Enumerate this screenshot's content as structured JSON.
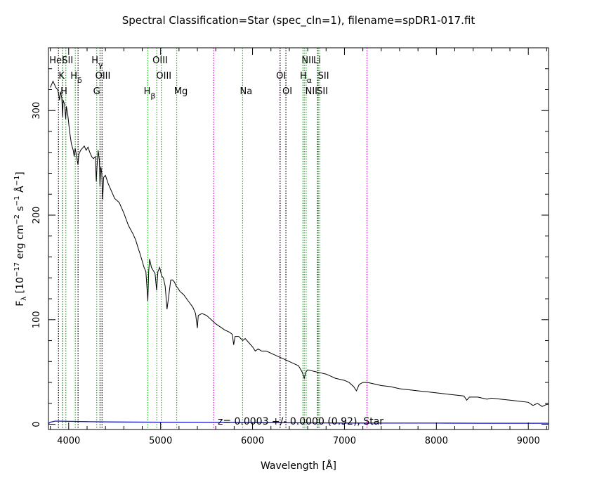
{
  "chart_data": {
    "type": "line",
    "title": "Spectral Classification=Star (spec_cln=1), filename=spDR1-017.fit",
    "xlabel": "Wavelength [Å]",
    "ylabel_main": "F",
    "ylabel_sub": "λ",
    "ylabel_bracket_open": " [10",
    "ylabel_exp1": "−17",
    "ylabel_mid1": " erg cm",
    "ylabel_exp2": "−2",
    "ylabel_mid2": " s",
    "ylabel_exp3": "−1",
    "ylabel_mid3": " Å",
    "ylabel_exp4": "−1",
    "ylabel_bracket_close": "]",
    "xlim": [
      3780,
      9220
    ],
    "ylim": [
      -5,
      360
    ],
    "x_ticks": [
      4000,
      5000,
      6000,
      7000,
      8000,
      9000
    ],
    "x_tick_labels": [
      "4000",
      "5000",
      "6000",
      "7000",
      "8000",
      "9000"
    ],
    "y_ticks": [
      0,
      100,
      200,
      300
    ],
    "y_tick_labels": [
      "0",
      "100",
      "200",
      "300"
    ],
    "annotation": "z= 0.0003 +/- 0.0000 (0.92), Star",
    "colors": {
      "spectrum": "#000000",
      "error": "#1010c8",
      "black_line": "#000000",
      "green_line": "#00c000",
      "magenta_line": "#d000d0"
    },
    "spectrum": [
      [
        3800,
        322
      ],
      [
        3830,
        328
      ],
      [
        3860,
        322
      ],
      [
        3880,
        320
      ],
      [
        3890,
        316
      ],
      [
        3900,
        310
      ],
      [
        3910,
        318
      ],
      [
        3925,
        312
      ],
      [
        3934,
        294
      ],
      [
        3940,
        310
      ],
      [
        3955,
        306
      ],
      [
        3968,
        292
      ],
      [
        3975,
        304
      ],
      [
        3990,
        296
      ],
      [
        4010,
        280
      ],
      [
        4030,
        268
      ],
      [
        4050,
        262
      ],
      [
        4060,
        256
      ],
      [
        4070,
        264
      ],
      [
        4090,
        254
      ],
      [
        4101,
        248
      ],
      [
        4110,
        258
      ],
      [
        4130,
        262
      ],
      [
        4150,
        264
      ],
      [
        4170,
        266
      ],
      [
        4190,
        262
      ],
      [
        4210,
        265
      ],
      [
        4230,
        260
      ],
      [
        4250,
        256
      ],
      [
        4270,
        254
      ],
      [
        4290,
        256
      ],
      [
        4300,
        232
      ],
      [
        4308,
        246
      ],
      [
        4320,
        262
      ],
      [
        4335,
        252
      ],
      [
        4340,
        228
      ],
      [
        4350,
        246
      ],
      [
        4360,
        240
      ],
      [
        4370,
        215
      ],
      [
        4380,
        236
      ],
      [
        4400,
        238
      ],
      [
        4430,
        230
      ],
      [
        4460,
        224
      ],
      [
        4500,
        216
      ],
      [
        4550,
        212
      ],
      [
        4600,
        202
      ],
      [
        4650,
        190
      ],
      [
        4700,
        182
      ],
      [
        4730,
        176
      ],
      [
        4750,
        170
      ],
      [
        4780,
        162
      ],
      [
        4800,
        156
      ],
      [
        4820,
        150
      ],
      [
        4840,
        146
      ],
      [
        4861,
        118
      ],
      [
        4870,
        146
      ],
      [
        4880,
        158
      ],
      [
        4900,
        150
      ],
      [
        4920,
        147
      ],
      [
        4940,
        144
      ],
      [
        4957,
        128
      ],
      [
        4970,
        146
      ],
      [
        4990,
        150
      ],
      [
        5010,
        142
      ],
      [
        5030,
        140
      ],
      [
        5050,
        132
      ],
      [
        5070,
        110
      ],
      [
        5090,
        124
      ],
      [
        5110,
        138
      ],
      [
        5130,
        138
      ],
      [
        5150,
        136
      ],
      [
        5170,
        132
      ],
      [
        5190,
        130
      ],
      [
        5210,
        127
      ],
      [
        5250,
        124
      ],
      [
        5300,
        118
      ],
      [
        5350,
        112
      ],
      [
        5380,
        106
      ],
      [
        5400,
        92
      ],
      [
        5410,
        104
      ],
      [
        5450,
        106
      ],
      [
        5500,
        104
      ],
      [
        5550,
        100
      ],
      [
        5600,
        96
      ],
      [
        5650,
        93
      ],
      [
        5700,
        90
      ],
      [
        5750,
        88
      ],
      [
        5780,
        86
      ],
      [
        5795,
        76
      ],
      [
        5810,
        84
      ],
      [
        5850,
        84
      ],
      [
        5893,
        80
      ],
      [
        5920,
        82
      ],
      [
        5960,
        78
      ],
      [
        6000,
        74
      ],
      [
        6030,
        70
      ],
      [
        6060,
        72
      ],
      [
        6100,
        70
      ],
      [
        6150,
        70
      ],
      [
        6200,
        68
      ],
      [
        6250,
        66
      ],
      [
        6300,
        64
      ],
      [
        6350,
        62
      ],
      [
        6400,
        60
      ],
      [
        6450,
        58
      ],
      [
        6500,
        56
      ],
      [
        6540,
        50
      ],
      [
        6563,
        44
      ],
      [
        6580,
        50
      ],
      [
        6600,
        52
      ],
      [
        6650,
        51
      ],
      [
        6700,
        50
      ],
      [
        6750,
        49
      ],
      [
        6800,
        48
      ],
      [
        6850,
        46
      ],
      [
        6900,
        44
      ],
      [
        6950,
        43
      ],
      [
        7000,
        42
      ],
      [
        7050,
        40
      ],
      [
        7100,
        36
      ],
      [
        7130,
        32
      ],
      [
        7160,
        38
      ],
      [
        7200,
        40
      ],
      [
        7250,
        40
      ],
      [
        7300,
        39
      ],
      [
        7400,
        37
      ],
      [
        7500,
        36
      ],
      [
        7600,
        34
      ],
      [
        7700,
        33
      ],
      [
        7800,
        32
      ],
      [
        7900,
        31
      ],
      [
        8000,
        30
      ],
      [
        8100,
        29
      ],
      [
        8200,
        28
      ],
      [
        8300,
        27
      ],
      [
        8330,
        23
      ],
      [
        8360,
        26
      ],
      [
        8450,
        26
      ],
      [
        8500,
        25
      ],
      [
        8550,
        24
      ],
      [
        8600,
        25
      ],
      [
        8700,
        24
      ],
      [
        8800,
        23
      ],
      [
        8900,
        22
      ],
      [
        9000,
        21
      ],
      [
        9050,
        18
      ],
      [
        9100,
        20
      ],
      [
        9150,
        17
      ],
      [
        9200,
        19
      ],
      [
        9220,
        19
      ]
    ],
    "error": [
      [
        3780,
        0.5
      ],
      [
        3800,
        2
      ],
      [
        3850,
        3
      ],
      [
        3900,
        3
      ],
      [
        4000,
        2.8
      ],
      [
        4200,
        2.5
      ],
      [
        4500,
        2.2
      ],
      [
        5000,
        2
      ],
      [
        5500,
        1.8
      ],
      [
        6000,
        1.6
      ],
      [
        6500,
        1.4
      ],
      [
        7000,
        1.2
      ],
      [
        7500,
        1.1
      ],
      [
        8000,
        1.1
      ],
      [
        8500,
        1.0
      ],
      [
        9000,
        1.0
      ],
      [
        9220,
        1.0
      ]
    ],
    "lines": [
      {
        "wavelength": 3889,
        "color": "black"
      },
      {
        "wavelength": 3934,
        "color": "black"
      },
      {
        "wavelength": 3935,
        "color": "green"
      },
      {
        "wavelength": 3969,
        "color": "green"
      },
      {
        "wavelength": 4072,
        "color": "green"
      },
      {
        "wavelength": 4102,
        "color": "black"
      },
      {
        "wavelength": 4305,
        "color": "green"
      },
      {
        "wavelength": 4341,
        "color": "black"
      },
      {
        "wavelength": 4363,
        "color": "black"
      },
      {
        "wavelength": 4861,
        "color": "green"
      },
      {
        "wavelength": 4959,
        "color": "green"
      },
      {
        "wavelength": 5007,
        "color": "green"
      },
      {
        "wavelength": 5175,
        "color": "green"
      },
      {
        "wavelength": 5577,
        "color": "magenta"
      },
      {
        "wavelength": 5892,
        "color": "green"
      },
      {
        "wavelength": 6300,
        "color": "magenta"
      },
      {
        "wavelength": 6300,
        "color": "black"
      },
      {
        "wavelength": 6363,
        "color": "black"
      },
      {
        "wavelength": 6548,
        "color": "green"
      },
      {
        "wavelength": 6563,
        "color": "green"
      },
      {
        "wavelength": 6583,
        "color": "green"
      },
      {
        "wavelength": 6707,
        "color": "black"
      },
      {
        "wavelength": 6716,
        "color": "green"
      },
      {
        "wavelength": 6731,
        "color": "green"
      },
      {
        "wavelength": 7245,
        "color": "magenta"
      }
    ],
    "line_labels": [
      {
        "text": "HeI",
        "wavelength": 3872,
        "row": 0
      },
      {
        "text": "SII",
        "wavelength": 3988,
        "row": 0
      },
      {
        "text": "K",
        "wavelength": 3922,
        "row": 1
      },
      {
        "text": "H",
        "wavelength": 3948,
        "row": 2
      },
      {
        "text": "H",
        "sub": "δ",
        "wavelength": 4082,
        "row": 1
      },
      {
        "text": "H",
        "sub": "γ",
        "wavelength": 4310,
        "row": 0
      },
      {
        "text": "OIII",
        "wavelength": 4372,
        "row": 1
      },
      {
        "text": "G",
        "wavelength": 4305,
        "row": 2
      },
      {
        "text": "OIII",
        "wavelength": 4995,
        "row": 0
      },
      {
        "text": "OIII",
        "wavelength": 5035,
        "row": 1
      },
      {
        "text": "H",
        "sub": "β",
        "wavelength": 4880,
        "row": 2
      },
      {
        "text": "Mg",
        "wavelength": 5220,
        "row": 2
      },
      {
        "text": "Na",
        "wavelength": 5930,
        "row": 2
      },
      {
        "text": "OI",
        "wavelength": 6310,
        "row": 1
      },
      {
        "text": "OI",
        "wavelength": 6378,
        "row": 2
      },
      {
        "text": "NII",
        "wavelength": 6600,
        "row": 0
      },
      {
        "text": "Li",
        "wavelength": 6702,
        "row": 0
      },
      {
        "text": "H",
        "sub": "α",
        "wavelength": 6580,
        "row": 1
      },
      {
        "text": "SII",
        "wavelength": 6772,
        "row": 1
      },
      {
        "text": "NII",
        "wavelength": 6640,
        "row": 2
      },
      {
        "text": "SII",
        "wavelength": 6760,
        "row": 2
      }
    ]
  }
}
